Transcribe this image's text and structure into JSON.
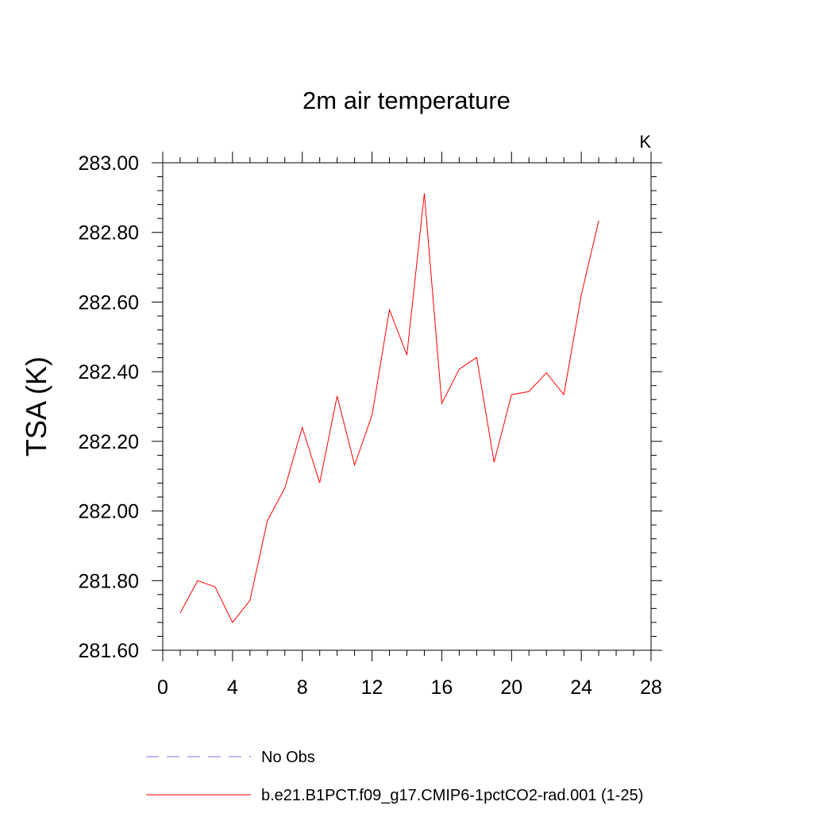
{
  "chart_data": {
    "type": "line",
    "title": "2m air temperature",
    "units_label": "K",
    "ylabel": "TSA  (K)",
    "xlabel": "",
    "xlim": [
      0,
      28
    ],
    "ylim": [
      281.6,
      283.0
    ],
    "x_ticks": [
      0,
      4,
      8,
      12,
      16,
      20,
      24,
      28
    ],
    "x_tick_labels": [
      "0",
      "4",
      "8",
      "12",
      "16",
      "20",
      "24",
      "28"
    ],
    "y_ticks": [
      281.6,
      281.8,
      282.0,
      282.2,
      282.4,
      282.6,
      282.8,
      283.0
    ],
    "y_tick_labels": [
      "281.60",
      "281.80",
      "282.00",
      "282.20",
      "282.40",
      "282.60",
      "282.80",
      "283.00"
    ],
    "grid": false,
    "legend_position": "bottom",
    "colors": {
      "model": "#ff0000",
      "obs": "#7b68ee"
    },
    "series": [
      {
        "name": "No Obs",
        "style": "dashed",
        "color": "#7b68ee",
        "x": [],
        "values": []
      },
      {
        "name": "b.e21.B1PCT.f09_g17.CMIP6-1pctCO2-rad.001 (1-25)",
        "style": "solid",
        "color": "#ff0000",
        "x": [
          1,
          2,
          3,
          4,
          5,
          6,
          7,
          8,
          9,
          10,
          11,
          12,
          13,
          14,
          15,
          16,
          17,
          18,
          19,
          20,
          21,
          22,
          23,
          24,
          25
        ],
        "values": [
          281.707,
          281.8,
          281.782,
          281.68,
          281.743,
          281.972,
          282.066,
          282.24,
          282.081,
          282.33,
          282.132,
          282.275,
          282.578,
          282.448,
          282.912,
          282.309,
          282.407,
          282.441,
          282.14,
          282.334,
          282.343,
          282.397,
          282.334,
          282.62,
          282.834
        ]
      }
    ]
  }
}
